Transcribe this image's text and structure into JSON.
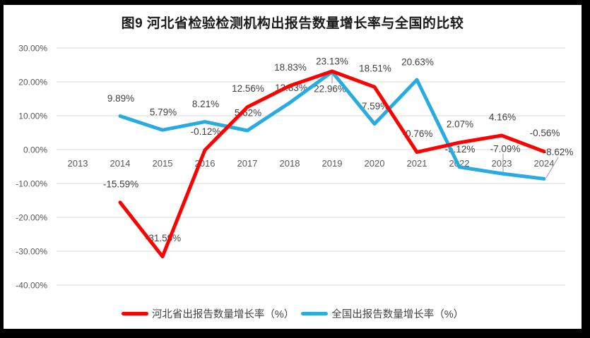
{
  "window": {
    "background": "#000000",
    "panel_background": "#ffffff"
  },
  "title": "图9 河北省检验检测机构出报告数量增长率与全国的比较",
  "chart_data": {
    "type": "line",
    "title": "图9 河北省检验检测机构出报告数量增长率与全国的比较",
    "categories": [
      "2013",
      "2014",
      "2015",
      "2016",
      "2017",
      "2018",
      "2019",
      "2020",
      "2021",
      "2022",
      "2023",
      "2024"
    ],
    "series": [
      {
        "name": "河北省出报告数量增长率（%）",
        "color": "#fe0000",
        "values": [
          null,
          -15.59,
          -31.59,
          -0.12,
          12.56,
          18.83,
          23.13,
          18.51,
          -0.76,
          2.07,
          4.16,
          -0.56
        ]
      },
      {
        "name": "全国出报告数量增长率（%）",
        "color": "#29abe2",
        "values": [
          null,
          9.89,
          5.79,
          8.21,
          5.62,
          13.83,
          22.96,
          7.59,
          20.63,
          -5.12,
          -7.09,
          -8.62
        ]
      }
    ],
    "ylim": [
      -40,
      30
    ],
    "y_tick_values": [
      30,
      20,
      10,
      0,
      -10,
      -20,
      -30,
      -40
    ],
    "y_tick_labels": [
      "30.00%",
      "20.00%",
      "10.00%",
      "0.00%",
      "-10.00%",
      "-20.00%",
      "-30.00%",
      "-40.00%"
    ],
    "grid": true,
    "data_labels": true,
    "legend_position": "bottom",
    "colors": {
      "gridline": "#d9d9d9",
      "tick_text": "#595959",
      "label_text": "#404040",
      "leader_line": "#a6a6a6",
      "title_text": "#1a1a1a"
    }
  }
}
